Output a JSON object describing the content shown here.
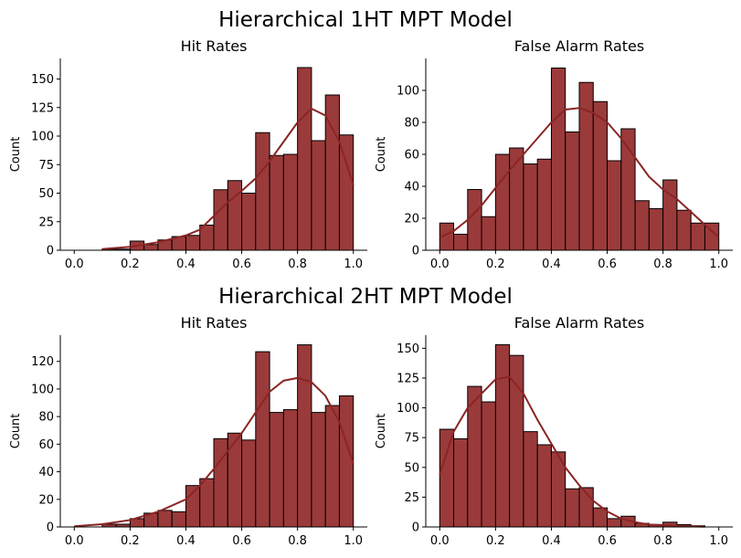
{
  "figure": {
    "suptitles": [
      "Hierarchical 1HT MPT Model",
      "Hierarchical 2HT MPT Model"
    ],
    "bar_color": "#9b3a3a",
    "kde_color": "#8b2525"
  },
  "chart_data": [
    {
      "type": "bar",
      "title": "Hit Rates",
      "xlabel": "",
      "ylabel": "Count",
      "xlim": [
        -0.05,
        1.05
      ],
      "ylim": [
        0,
        168
      ],
      "xticks": [
        "0.0",
        "0.2",
        "0.4",
        "0.6",
        "0.8",
        "1.0"
      ],
      "yticks": [
        "0",
        "25",
        "50",
        "75",
        "100",
        "125",
        "150"
      ],
      "bin_edges": [
        0.1,
        0.15,
        0.2,
        0.25,
        0.3,
        0.35,
        0.4,
        0.45,
        0.5,
        0.55,
        0.6,
        0.65,
        0.7,
        0.75,
        0.8,
        0.85,
        0.9,
        0.95,
        1.0
      ],
      "values": [
        1,
        1,
        8,
        5,
        9,
        12,
        13,
        22,
        53,
        61,
        50,
        103,
        83,
        84,
        160,
        96,
        136,
        101
      ],
      "kde": [
        [
          0.1,
          1
        ],
        [
          0.2,
          3
        ],
        [
          0.3,
          7
        ],
        [
          0.4,
          13
        ],
        [
          0.45,
          18
        ],
        [
          0.5,
          30
        ],
        [
          0.55,
          42
        ],
        [
          0.6,
          52
        ],
        [
          0.65,
          63
        ],
        [
          0.7,
          78
        ],
        [
          0.75,
          95
        ],
        [
          0.8,
          112
        ],
        [
          0.85,
          124
        ],
        [
          0.9,
          118
        ],
        [
          0.95,
          95
        ],
        [
          1.0,
          57
        ]
      ]
    },
    {
      "type": "bar",
      "title": "False Alarm Rates",
      "xlabel": "",
      "ylabel": "Count",
      "xlim": [
        -0.05,
        1.05
      ],
      "ylim": [
        0,
        120
      ],
      "xticks": [
        "0.0",
        "0.2",
        "0.4",
        "0.6",
        "0.8",
        "1.0"
      ],
      "yticks": [
        "0",
        "20",
        "40",
        "60",
        "80",
        "100"
      ],
      "bin_edges": [
        0.0,
        0.05,
        0.1,
        0.15,
        0.2,
        0.25,
        0.3,
        0.35,
        0.4,
        0.45,
        0.5,
        0.55,
        0.6,
        0.65,
        0.7,
        0.75,
        0.8,
        0.85,
        0.9,
        0.95,
        1.0
      ],
      "values": [
        17,
        10,
        38,
        21,
        60,
        64,
        54,
        57,
        114,
        74,
        105,
        93,
        56,
        76,
        31,
        26,
        44,
        25,
        17,
        17
      ],
      "kde": [
        [
          0.0,
          8
        ],
        [
          0.05,
          12
        ],
        [
          0.1,
          19
        ],
        [
          0.15,
          28
        ],
        [
          0.2,
          39
        ],
        [
          0.25,
          50
        ],
        [
          0.3,
          60
        ],
        [
          0.35,
          70
        ],
        [
          0.4,
          80
        ],
        [
          0.45,
          88
        ],
        [
          0.5,
          89
        ],
        [
          0.55,
          86
        ],
        [
          0.6,
          80
        ],
        [
          0.65,
          70
        ],
        [
          0.7,
          58
        ],
        [
          0.75,
          46
        ],
        [
          0.8,
          38
        ],
        [
          0.85,
          32
        ],
        [
          0.9,
          24
        ],
        [
          0.95,
          16
        ],
        [
          1.0,
          8
        ]
      ]
    },
    {
      "type": "bar",
      "title": "Hit Rates",
      "xlabel": "",
      "ylabel": "Count",
      "xlim": [
        -0.05,
        1.05
      ],
      "ylim": [
        0,
        139
      ],
      "xticks": [
        "0.0",
        "0.2",
        "0.4",
        "0.6",
        "0.8",
        "1.0"
      ],
      "yticks": [
        "0",
        "20",
        "40",
        "60",
        "80",
        "100",
        "120"
      ],
      "bin_edges": [
        0.1,
        0.15,
        0.2,
        0.25,
        0.3,
        0.35,
        0.4,
        0.45,
        0.5,
        0.55,
        0.6,
        0.65,
        0.7,
        0.75,
        0.8,
        0.85,
        0.9,
        0.95,
        1.0
      ],
      "values": [
        2,
        2,
        6,
        10,
        12,
        11,
        30,
        35,
        64,
        68,
        63,
        127,
        83,
        85,
        132,
        83,
        88,
        95
      ],
      "kde": [
        [
          0.0,
          0.5
        ],
        [
          0.1,
          2
        ],
        [
          0.2,
          5
        ],
        [
          0.3,
          11
        ],
        [
          0.4,
          20
        ],
        [
          0.45,
          30
        ],
        [
          0.5,
          42
        ],
        [
          0.55,
          55
        ],
        [
          0.6,
          68
        ],
        [
          0.65,
          83
        ],
        [
          0.7,
          98
        ],
        [
          0.75,
          106
        ],
        [
          0.8,
          108
        ],
        [
          0.85,
          105
        ],
        [
          0.9,
          95
        ],
        [
          0.95,
          76
        ],
        [
          1.0,
          46
        ]
      ]
    },
    {
      "type": "bar",
      "title": "False Alarm Rates",
      "xlabel": "",
      "ylabel": "Count",
      "xlim": [
        -0.05,
        1.05
      ],
      "ylim": [
        0,
        161
      ],
      "xticks": [
        "0.0",
        "0.2",
        "0.4",
        "0.6",
        "0.8",
        "1.0"
      ],
      "yticks": [
        "0",
        "25",
        "50",
        "75",
        "100",
        "125",
        "150"
      ],
      "bin_edges": [
        0.0,
        0.05,
        0.1,
        0.15,
        0.2,
        0.25,
        0.3,
        0.35,
        0.4,
        0.45,
        0.5,
        0.55,
        0.6,
        0.65,
        0.7,
        0.75,
        0.8,
        0.85,
        0.9,
        0.95
      ],
      "values": [
        82,
        74,
        118,
        105,
        153,
        144,
        80,
        69,
        63,
        32,
        33,
        16,
        7,
        9,
        3,
        2,
        4,
        2,
        1
      ],
      "kde": [
        [
          0.0,
          44
        ],
        [
          0.05,
          80
        ],
        [
          0.1,
          100
        ],
        [
          0.15,
          112
        ],
        [
          0.2,
          124
        ],
        [
          0.25,
          126
        ],
        [
          0.3,
          112
        ],
        [
          0.35,
          90
        ],
        [
          0.4,
          70
        ],
        [
          0.45,
          50
        ],
        [
          0.5,
          35
        ],
        [
          0.55,
          22
        ],
        [
          0.6,
          13
        ],
        [
          0.65,
          7
        ],
        [
          0.7,
          4
        ],
        [
          0.75,
          2
        ],
        [
          0.8,
          1.5
        ],
        [
          0.85,
          1
        ],
        [
          0.9,
          0.5
        ],
        [
          0.95,
          0.2
        ]
      ]
    }
  ]
}
